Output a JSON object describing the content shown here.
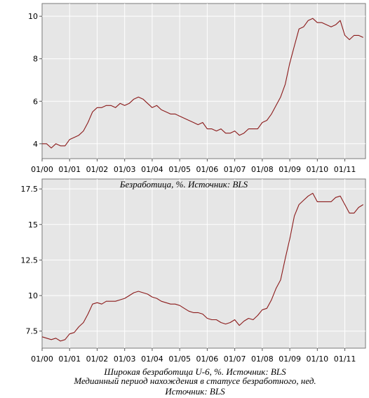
{
  "chart_data": [
    {
      "type": "line",
      "title": "",
      "caption": "Безработица, %. Источник: BLS",
      "xlabel": "",
      "ylabel": "",
      "x_ticks": [
        "01/00",
        "01/01",
        "01/02",
        "01/03",
        "01/04",
        "01/05",
        "01/06",
        "01/07",
        "01/08",
        "01/09",
        "01/10",
        "01/11"
      ],
      "y_ticks": [
        "4",
        "6",
        "8",
        "10"
      ],
      "ylim": [
        3.3,
        10.6
      ],
      "grid": true,
      "line_color": "#8b1a1a",
      "x": [
        "2000-01",
        "2000-03",
        "2000-05",
        "2000-07",
        "2000-09",
        "2000-11",
        "2001-01",
        "2001-03",
        "2001-05",
        "2001-07",
        "2001-09",
        "2001-11",
        "2002-01",
        "2002-03",
        "2002-05",
        "2002-07",
        "2002-09",
        "2002-11",
        "2003-01",
        "2003-03",
        "2003-05",
        "2003-07",
        "2003-09",
        "2003-11",
        "2004-01",
        "2004-03",
        "2004-05",
        "2004-07",
        "2004-09",
        "2004-11",
        "2005-01",
        "2005-03",
        "2005-05",
        "2005-07",
        "2005-09",
        "2005-11",
        "2006-01",
        "2006-03",
        "2006-05",
        "2006-07",
        "2006-09",
        "2006-11",
        "2007-01",
        "2007-03",
        "2007-05",
        "2007-07",
        "2007-09",
        "2007-11",
        "2008-01",
        "2008-03",
        "2008-05",
        "2008-07",
        "2008-09",
        "2008-11",
        "2009-01",
        "2009-03",
        "2009-05",
        "2009-07",
        "2009-09",
        "2009-11",
        "2010-01",
        "2010-03",
        "2010-05",
        "2010-07",
        "2010-09",
        "2010-11",
        "2011-01",
        "2011-03",
        "2011-05",
        "2011-07",
        "2011-09"
      ],
      "series": [
        {
          "values": [
            4.0,
            4.0,
            3.8,
            4.0,
            3.9,
            3.9,
            4.2,
            4.3,
            4.4,
            4.6,
            5.0,
            5.5,
            5.7,
            5.7,
            5.8,
            5.8,
            5.7,
            5.9,
            5.8,
            5.9,
            6.1,
            6.2,
            6.1,
            5.9,
            5.7,
            5.8,
            5.6,
            5.5,
            5.4,
            5.4,
            5.3,
            5.2,
            5.1,
            5.0,
            4.9,
            5.0,
            4.7,
            4.7,
            4.6,
            4.7,
            4.5,
            4.5,
            4.6,
            4.4,
            4.5,
            4.7,
            4.7,
            4.7,
            5.0,
            5.1,
            5.4,
            5.8,
            6.2,
            6.8,
            7.8,
            8.6,
            9.4,
            9.5,
            9.8,
            9.9,
            9.7,
            9.7,
            9.6,
            9.5,
            9.6,
            9.8,
            9.1,
            8.9,
            9.1,
            9.1,
            9.0
          ]
        }
      ]
    },
    {
      "type": "line",
      "title": "",
      "caption": "Широкая безработица U-6, %. Источник: BLS",
      "xlabel": "",
      "ylabel": "",
      "x_ticks": [
        "01/00",
        "01/01",
        "01/02",
        "01/03",
        "01/04",
        "01/05",
        "01/06",
        "01/07",
        "01/08",
        "01/09",
        "01/10",
        "01/11"
      ],
      "y_ticks": [
        "7.5",
        "10",
        "12.5",
        "15",
        "17.5"
      ],
      "ylim": [
        6.3,
        18.2
      ],
      "grid": true,
      "line_color": "#8b1a1a",
      "x": [
        "2000-01",
        "2000-03",
        "2000-05",
        "2000-07",
        "2000-09",
        "2000-11",
        "2001-01",
        "2001-03",
        "2001-05",
        "2001-07",
        "2001-09",
        "2001-11",
        "2002-01",
        "2002-03",
        "2002-05",
        "2002-07",
        "2002-09",
        "2002-11",
        "2003-01",
        "2003-03",
        "2003-05",
        "2003-07",
        "2003-09",
        "2003-11",
        "2004-01",
        "2004-03",
        "2004-05",
        "2004-07",
        "2004-09",
        "2004-11",
        "2005-01",
        "2005-03",
        "2005-05",
        "2005-07",
        "2005-09",
        "2005-11",
        "2006-01",
        "2006-03",
        "2006-05",
        "2006-07",
        "2006-09",
        "2006-11",
        "2007-01",
        "2007-03",
        "2007-05",
        "2007-07",
        "2007-09",
        "2007-11",
        "2008-01",
        "2008-03",
        "2008-05",
        "2008-07",
        "2008-09",
        "2008-11",
        "2009-01",
        "2009-03",
        "2009-05",
        "2009-07",
        "2009-09",
        "2009-11",
        "2010-01",
        "2010-03",
        "2010-05",
        "2010-07",
        "2010-09",
        "2010-11",
        "2011-01",
        "2011-03",
        "2011-05",
        "2011-07",
        "2011-09"
      ],
      "series": [
        {
          "values": [
            7.1,
            7.0,
            6.9,
            7.0,
            6.8,
            6.9,
            7.3,
            7.4,
            7.8,
            8.1,
            8.7,
            9.4,
            9.5,
            9.4,
            9.6,
            9.6,
            9.6,
            9.7,
            9.8,
            10.0,
            10.2,
            10.3,
            10.2,
            10.1,
            9.9,
            9.8,
            9.6,
            9.5,
            9.4,
            9.4,
            9.3,
            9.1,
            8.9,
            8.8,
            8.8,
            8.7,
            8.4,
            8.3,
            8.3,
            8.1,
            8.0,
            8.1,
            8.3,
            7.9,
            8.2,
            8.4,
            8.3,
            8.6,
            9.0,
            9.1,
            9.7,
            10.5,
            11.1,
            12.6,
            14.0,
            15.6,
            16.4,
            16.7,
            17.0,
            17.2,
            16.6,
            16.6,
            16.6,
            16.6,
            16.9,
            17.0,
            16.4,
            15.8,
            15.8,
            16.2,
            16.4
          ]
        }
      ]
    }
  ],
  "extra_caption_line1": "Медианный  период нахождения в статусе безработного, нед.",
  "extra_caption_line2": "Источник: BLS"
}
